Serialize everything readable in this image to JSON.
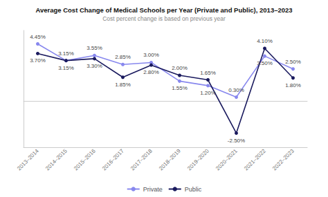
{
  "chart_data": {
    "type": "line",
    "title": "Average Cost Change of Medical Schools per Year (Private and Public), 2013–2023",
    "subtitle": "Cost percent change is based on previous year",
    "categories": [
      "2013–2014",
      "2014–2015",
      "2015–2016",
      "2016–2017",
      "2017–2018",
      "2018–2019",
      "2019–2020",
      "2020–2021",
      "2021–2022",
      "2022–2023"
    ],
    "series": [
      {
        "name": "Private",
        "color": "#8888ee",
        "values": [
          4.45,
          3.15,
          3.55,
          2.85,
          3.0,
          1.55,
          1.2,
          0.3,
          3.5,
          2.5
        ],
        "value_labels": [
          "4.45%",
          "3.15%",
          "3.55%",
          "2.85%",
          "3.00%",
          "1.55%",
          "1.20%",
          "0.30%",
          "3.50%",
          "2.50%"
        ]
      },
      {
        "name": "Public",
        "color": "#1a1a5e",
        "values": [
          3.7,
          3.15,
          3.3,
          1.85,
          2.8,
          2.0,
          1.65,
          -2.5,
          4.1,
          1.8
        ],
        "value_labels": [
          "3.70%",
          "3.15%",
          "3.30%",
          "1.85%",
          "2.80%",
          "2.00%",
          "1.65%",
          "-2.50%",
          "4.10%",
          "1.80%"
        ]
      }
    ],
    "ylim": [
      -3.6,
      5.5
    ],
    "tick_labels": "x",
    "grid": false,
    "legend": "bottom",
    "data_labels": true,
    "marker": "circle"
  }
}
